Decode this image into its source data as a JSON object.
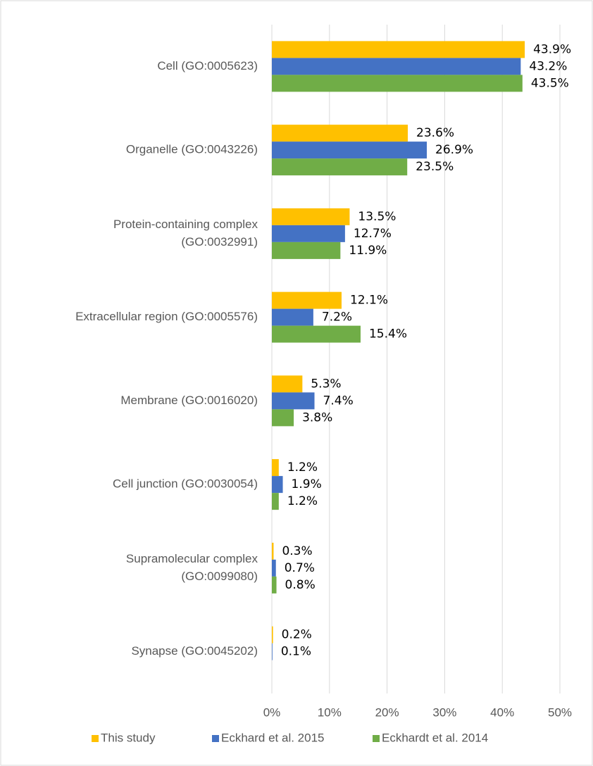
{
  "chart_data": {
    "type": "bar",
    "orientation": "horizontal",
    "categories": [
      [
        "Cell (GO:0005623)"
      ],
      [
        "Organelle (GO:0043226)"
      ],
      [
        "Protein-containing complex",
        "(GO:0032991)"
      ],
      [
        "Extracellular region (GO:0005576)"
      ],
      [
        "Membrane (GO:0016020)"
      ],
      [
        "Cell junction (GO:0030054)"
      ],
      [
        "Supramolecular complex",
        "(GO:0099080)"
      ],
      [
        "Synapse (GO:0045202)"
      ]
    ],
    "series": [
      {
        "name": "This study",
        "color": "#ffc000",
        "values": [
          43.9,
          23.6,
          13.5,
          12.1,
          5.3,
          1.2,
          0.3,
          0.2
        ],
        "value_labels": [
          "43.9%",
          "23.6%",
          "13.5%",
          "12.1%",
          "5.3%",
          "1.2%",
          "0.3%",
          "0.2%"
        ]
      },
      {
        "name": "Eckhard et al. 2015",
        "color": "#4472c4",
        "values": [
          43.2,
          26.9,
          12.7,
          7.2,
          7.4,
          1.9,
          0.7,
          0.1
        ],
        "value_labels": [
          "43.2%",
          "26.9%",
          "12.7%",
          "7.2%",
          "7.4%",
          "1.9%",
          "0.7%",
          "0.1%"
        ]
      },
      {
        "name": "Eckhardt et al. 2014",
        "color": "#70ad47",
        "values": [
          43.5,
          23.5,
          11.9,
          15.4,
          3.8,
          1.2,
          0.8,
          null
        ],
        "value_labels": [
          "43.5%",
          "23.5%",
          "11.9%",
          "15.4%",
          "3.8%",
          "1.2%",
          "0.8%",
          null
        ]
      }
    ],
    "xlim": [
      0,
      50
    ],
    "xticks": [
      {
        "value": 0,
        "label": "0%"
      },
      {
        "value": 10,
        "label": "10%"
      },
      {
        "value": 20,
        "label": "20%"
      },
      {
        "value": 30,
        "label": "30%"
      },
      {
        "value": 40,
        "label": "40%"
      },
      {
        "value": 50,
        "label": "50%"
      }
    ],
    "grid": true,
    "legend": "bottom"
  }
}
